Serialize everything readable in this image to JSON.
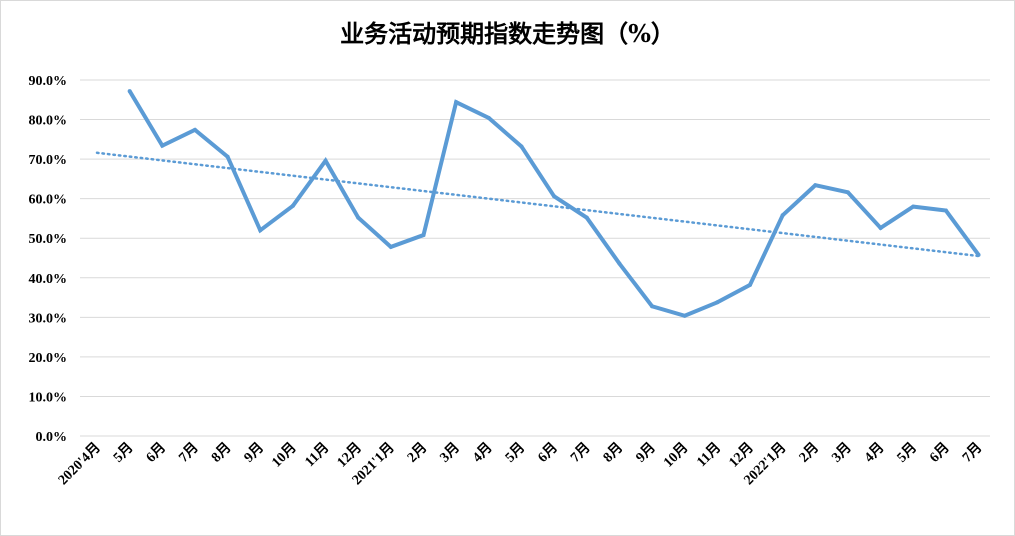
{
  "chart_data": {
    "type": "line",
    "title": "业务活动预期指数走势图（%）",
    "xlabel": "",
    "ylabel": "",
    "categories": [
      "2020'4月",
      "5月",
      "6月",
      "7月",
      "8月",
      "9月",
      "10月",
      "11月",
      "12月",
      "2021'1月",
      "2月",
      "3月",
      "4月",
      "5月",
      "6月",
      "7月",
      "8月",
      "9月",
      "10月",
      "11月",
      "12月",
      "2022'1月",
      "2月",
      "3月",
      "4月",
      "5月",
      "6月",
      "7月"
    ],
    "series": [
      {
        "values": [
          null,
          87.2,
          73.4,
          77.4,
          70.6,
          52.0,
          58.2,
          69.6,
          55.2,
          47.8,
          50.8,
          84.4,
          80.4,
          73.2,
          60.6,
          55.2,
          43.6,
          32.8,
          30.4,
          33.8,
          38.2,
          55.8,
          63.4,
          61.6,
          52.6,
          58.0,
          57.0,
          45.8
        ]
      }
    ],
    "trendline": {
      "style": "dotted-linear",
      "start": 71.6,
      "end": 45.5
    },
    "y_ticks": [
      "0.0%",
      "10.0%",
      "20.0%",
      "30.0%",
      "40.0%",
      "50.0%",
      "60.0%",
      "70.0%",
      "80.0%",
      "90.0%"
    ],
    "ylim": [
      0,
      90
    ],
    "grid": true,
    "legend": "none",
    "colors": {
      "series": "#5b9bd5",
      "trend": "#5b9bd5",
      "grid": "#d9d9d9"
    }
  }
}
